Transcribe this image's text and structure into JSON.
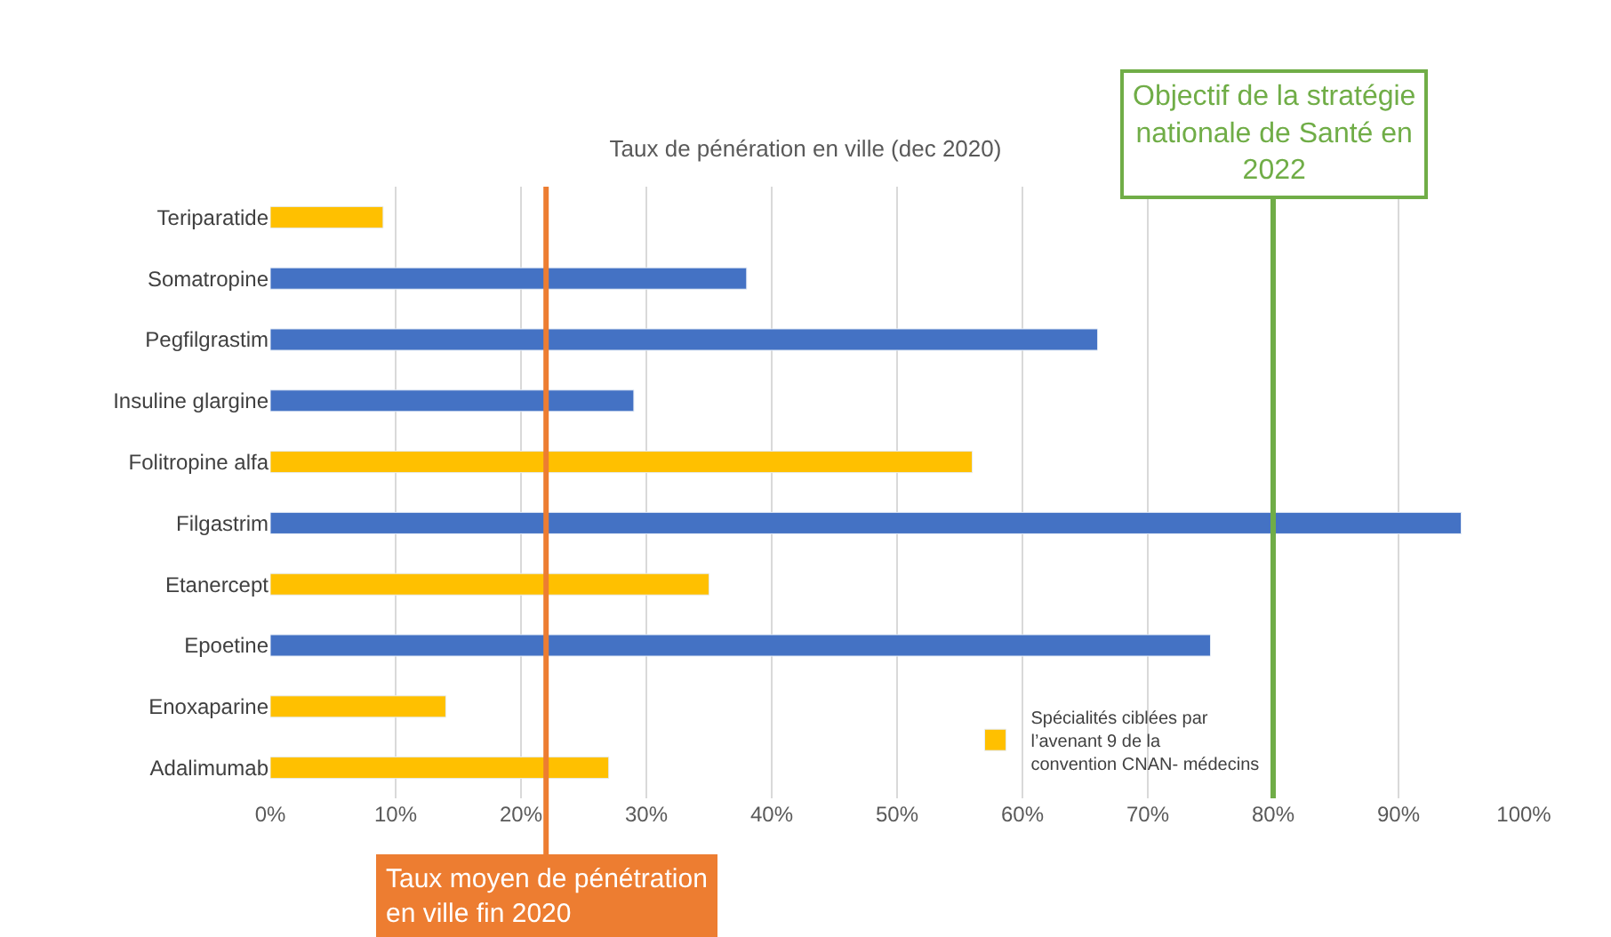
{
  "chart_data": {
    "type": "bar",
    "orientation": "horizontal",
    "title": "Taux de pénération en ville (dec 2020)",
    "categories": [
      "Teriparatide",
      "Somatropine",
      "Pegfilgrastim",
      "Insuline glargine",
      "Folitropine alfa",
      "Filgastrim",
      "Etanercept",
      "Epoetine",
      "Enoxaparine",
      "Adalimumab"
    ],
    "series": [
      {
        "color": "#4472c4",
        "values": [
          null,
          38,
          66,
          29,
          null,
          95,
          null,
          75,
          null,
          null
        ]
      },
      {
        "name": "Spécialités ciblées par l’avenant 9 de la convention CNAN- médecins",
        "color": "#ffc000",
        "values": [
          9,
          null,
          null,
          null,
          56,
          null,
          35,
          null,
          14,
          27
        ]
      }
    ],
    "xlim": [
      0,
      100
    ],
    "xticks": [
      {
        "value": 0,
        "label": "0%"
      },
      {
        "value": 10,
        "label": "10%"
      },
      {
        "value": 20,
        "label": "20%"
      },
      {
        "value": 30,
        "label": "30%"
      },
      {
        "value": 40,
        "label": "40%"
      },
      {
        "value": 50,
        "label": "50%"
      },
      {
        "value": 60,
        "label": "60%"
      },
      {
        "value": 70,
        "label": "70%"
      },
      {
        "value": 80,
        "label": "80%"
      },
      {
        "value": 90,
        "label": "90%"
      },
      {
        "value": 100,
        "label": "100%"
      }
    ],
    "ref_lines": [
      {
        "axis": "x",
        "value": 22,
        "label": "Taux moyen de pénétration en ville fin 2020",
        "color": "#ed7d31"
      },
      {
        "axis": "x",
        "value": 80,
        "label": "Objectif de la stratégie nationale de Santé en 2022",
        "color": "#70ad47"
      }
    ],
    "grid": "x",
    "legend": "bottom right"
  }
}
